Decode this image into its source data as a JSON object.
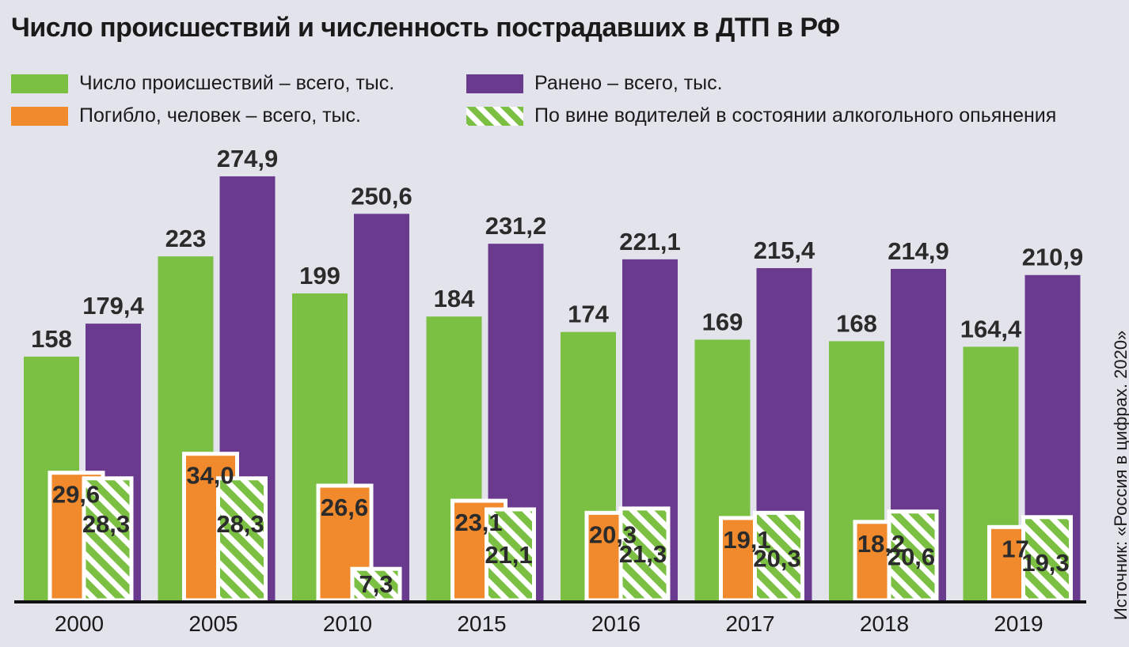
{
  "title": "Число происшествий и численность пострадавших в ДТП в РФ",
  "source": "Источник: «Россия в цифрах. 2020»",
  "chart_data": {
    "type": "bar",
    "title": "Число происшествий и численность пострадавших в ДТП в РФ",
    "categories": [
      "2000",
      "2005",
      "2010",
      "2015",
      "2016",
      "2017",
      "2018",
      "2019"
    ],
    "series": [
      {
        "name": "Число происшествий – всего, тыс.",
        "color": "#7bc043",
        "values": [
          158,
          223,
          199,
          184,
          174,
          169,
          168,
          164.4
        ],
        "labels": [
          "158",
          "223",
          "199",
          "184",
          "174",
          "169",
          "168",
          "164,4"
        ]
      },
      {
        "name": "Ранено – всего, тыс.",
        "color": "#6a3a8f",
        "values": [
          179.4,
          274.9,
          250.6,
          231.2,
          221.1,
          215.4,
          214.9,
          210.9
        ],
        "labels": [
          "179,4",
          "274,9",
          "250,6",
          "231,2",
          "221,1",
          "215,4",
          "214,9",
          "210,9"
        ]
      },
      {
        "name": "Погибло, человек – всего, тыс.",
        "color": "#f08a2c",
        "values": [
          29.6,
          34.0,
          26.6,
          23.1,
          20.3,
          19.1,
          18.2,
          17
        ],
        "labels": [
          "29,6",
          "34,0",
          "26,6",
          "23,1",
          "20,3",
          "19,1",
          "18,2",
          "17"
        ]
      },
      {
        "name": "По вине водителей в состоянии алкогольного опьянения",
        "color": "#7bc043",
        "pattern": "hatched",
        "values": [
          28.3,
          28.3,
          7.3,
          21.1,
          21.3,
          20.3,
          20.6,
          19.3
        ],
        "labels": [
          "28,3",
          "28,3",
          "7,3",
          "21,1",
          "21,3",
          "20,3",
          "20,6",
          "19,3"
        ]
      }
    ],
    "legend_position": "top",
    "grid": false
  }
}
